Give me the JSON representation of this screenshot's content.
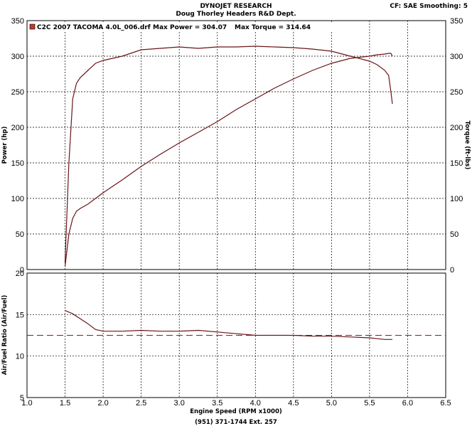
{
  "header": {
    "line1": "DYNOJET RESEARCH",
    "line2": "Doug Thorley Headers R&D Dept.",
    "settings": "CF: SAE  Smoothing: 5"
  },
  "footer": {
    "phone": "(951) 371-1744 Ext. 257"
  },
  "colors": {
    "curve": "#6b1418",
    "afr_target": "#8b1a1a",
    "legend_swatch": "#c0392b"
  },
  "chart_data": [
    {
      "type": "line",
      "legend": {
        "placement": "top-left",
        "run": "C2C 2007 TACOMA 4.0L_006.drf",
        "max_power": "Max Power = 304.07",
        "max_torque": "Max Torque = 314.64"
      },
      "xlabel": "Engine Speed (RPM x1000)",
      "xlim": [
        1.0,
        6.5
      ],
      "x_ticks": [
        "1.0",
        "1.5",
        "2.0",
        "2.5",
        "3.0",
        "3.5",
        "4.0",
        "4.5",
        "5.0",
        "5.5",
        "6.0",
        "6.5"
      ],
      "ylabel": "Power (hp)",
      "ylim": [
        0,
        350
      ],
      "y_ticks": [
        "0",
        "50",
        "100",
        "150",
        "200",
        "250",
        "300",
        "350"
      ],
      "y2label": "Torque (ft-lbs)",
      "y2lim": [
        0,
        350
      ],
      "y2_ticks": [
        "0",
        "50",
        "100",
        "150",
        "200",
        "250",
        "300",
        "350"
      ],
      "grid": true,
      "series": [
        {
          "name": "Power",
          "axis": "left",
          "x": [
            1.5,
            1.55,
            1.6,
            1.65,
            1.7,
            1.8,
            1.9,
            2.0,
            2.25,
            2.5,
            2.75,
            3.0,
            3.25,
            3.5,
            3.75,
            4.0,
            4.25,
            4.5,
            4.75,
            5.0,
            5.25,
            5.5,
            5.6,
            5.7,
            5.75,
            5.78,
            5.8
          ],
          "y": [
            4,
            50,
            72,
            82,
            86,
            92,
            100,
            108,
            126,
            145,
            162,
            178,
            193,
            208,
            225,
            240,
            255,
            268,
            280,
            290,
            297,
            300,
            302,
            303,
            304,
            304,
            300
          ]
        },
        {
          "name": "Torque",
          "axis": "right",
          "x": [
            1.5,
            1.55,
            1.6,
            1.65,
            1.7,
            1.8,
            1.9,
            2.0,
            2.25,
            2.5,
            2.75,
            3.0,
            3.25,
            3.5,
            3.75,
            4.0,
            4.25,
            4.5,
            4.75,
            5.0,
            5.25,
            5.5,
            5.6,
            5.7,
            5.75,
            5.78,
            5.8
          ],
          "y": [
            10,
            150,
            240,
            262,
            270,
            280,
            290,
            294,
            300,
            309,
            311,
            313,
            311,
            313,
            313,
            314,
            313,
            312,
            310,
            307,
            300,
            293,
            288,
            280,
            273,
            250,
            233
          ]
        }
      ]
    },
    {
      "type": "line",
      "xlabel": "Engine Speed (RPM x1000)",
      "xlim": [
        1.0,
        6.5
      ],
      "x_ticks": [
        "1.0",
        "1.5",
        "2.0",
        "2.5",
        "3.0",
        "3.5",
        "4.0",
        "4.5",
        "5.0",
        "5.5",
        "6.0",
        "6.5"
      ],
      "ylabel": "Air/Fuel Ratio (Air/Fuel)",
      "ylim": [
        5,
        20
      ],
      "y_ticks": [
        "5",
        "10",
        "15",
        "20"
      ],
      "grid": true,
      "reference_line": 12.5,
      "series": [
        {
          "name": "Air/Fuel",
          "x": [
            1.5,
            1.6,
            1.7,
            1.8,
            1.9,
            2.0,
            2.25,
            2.5,
            2.75,
            3.0,
            3.25,
            3.5,
            3.75,
            4.0,
            4.25,
            4.5,
            4.75,
            5.0,
            5.25,
            5.5,
            5.6,
            5.7,
            5.8
          ],
          "y": [
            15.5,
            15.1,
            14.5,
            13.9,
            13.2,
            13.0,
            13.0,
            13.1,
            13.0,
            13.0,
            13.1,
            12.9,
            12.7,
            12.5,
            12.5,
            12.5,
            12.4,
            12.4,
            12.3,
            12.2,
            12.1,
            12.0,
            12.0
          ]
        }
      ]
    }
  ]
}
